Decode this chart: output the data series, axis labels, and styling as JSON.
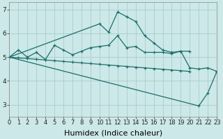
{
  "bg_color": "#cce8e8",
  "grid_color": "#aacccc",
  "line_color": "#1a6e6a",
  "x": [
    0,
    1,
    2,
    3,
    4,
    5,
    6,
    7,
    8,
    9,
    10,
    11,
    12,
    13,
    14,
    15,
    16,
    17,
    18,
    19,
    20,
    21,
    22,
    23
  ],
  "line1_y": [
    5.0,
    5.3,
    5.0,
    5.2,
    4.9,
    5.5,
    5.3,
    5.1,
    5.25,
    5.4,
    5.45,
    5.5,
    5.9,
    5.4,
    5.45,
    5.2,
    5.2,
    5.2,
    5.15,
    5.25,
    5.25,
    null,
    null,
    null
  ],
  "line2_y": [
    5.0,
    null,
    null,
    null,
    null,
    null,
    null,
    null,
    null,
    null,
    6.4,
    6.05,
    6.9,
    6.7,
    6.5,
    5.9,
    5.6,
    5.3,
    5.2,
    5.25,
    4.55,
    4.5,
    4.55,
    4.4
  ],
  "line3_y": [
    5.0,
    null,
    null,
    null,
    null,
    null,
    null,
    null,
    null,
    null,
    null,
    null,
    null,
    null,
    null,
    null,
    null,
    null,
    null,
    null,
    null,
    2.95,
    3.5,
    4.4
  ],
  "line4_y": [
    5.0,
    4.97,
    4.94,
    4.91,
    4.88,
    4.85,
    4.82,
    4.79,
    4.76,
    4.73,
    4.7,
    4.67,
    4.64,
    4.61,
    4.58,
    4.55,
    4.52,
    4.49,
    4.46,
    4.43,
    4.4,
    null,
    null,
    null
  ],
  "xlim": [
    0,
    23
  ],
  "ylim": [
    2.5,
    7.3
  ],
  "yticks": [
    3,
    4,
    5,
    6,
    7
  ],
  "xtick_labels": [
    "0",
    "1",
    "2",
    "3",
    "4",
    "5",
    "6",
    "7",
    "8",
    "9",
    "10",
    "11",
    "12",
    "13",
    "14",
    "15",
    "16",
    "17",
    "18",
    "19",
    "20",
    "21",
    "22",
    "23"
  ],
  "xlabel": "Humidex (Indice chaleur)",
  "xlabel_fontsize": 8,
  "tick_fontsize": 6.5,
  "lw": 0.9,
  "ms": 2.5
}
